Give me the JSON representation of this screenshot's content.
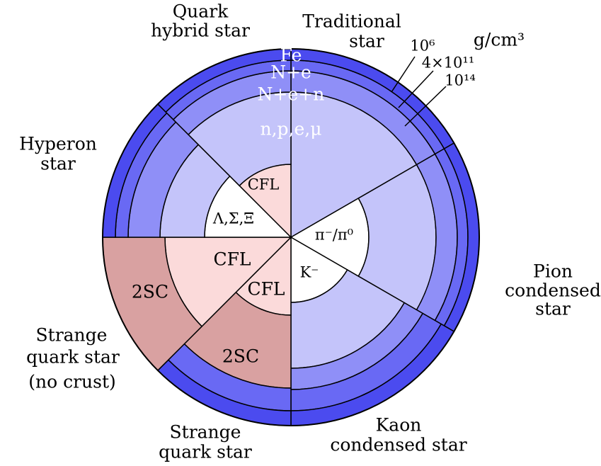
{
  "layers": [
    "Fe",
    "N+e",
    "N+e+n",
    "n,p,e,μ"
  ],
  "densities": {
    "unit": "g/cm³",
    "values": [
      "10⁶",
      "4×10¹¹",
      "10¹⁴"
    ]
  },
  "cores": [
    "CFL",
    "Λ,Σ,Ξ",
    "π⁻/π⁰",
    "K⁻",
    "CFL",
    "CFL",
    "2SC",
    "2SC"
  ],
  "stars": [
    {
      "lines": [
        "Quark",
        "hybrid star"
      ]
    },
    {
      "lines": [
        "Traditional",
        "star"
      ]
    },
    {
      "lines": [
        "Hyperon",
        "star"
      ]
    },
    {
      "lines": [
        "Pion",
        "condensed",
        "star"
      ]
    },
    {
      "lines": [
        "Strange",
        "quark star",
        "(no crust)"
      ]
    },
    {
      "lines": [
        "Strange",
        "quark star"
      ]
    },
    {
      "lines": [
        "Kaon",
        "condensed star"
      ]
    }
  ]
}
